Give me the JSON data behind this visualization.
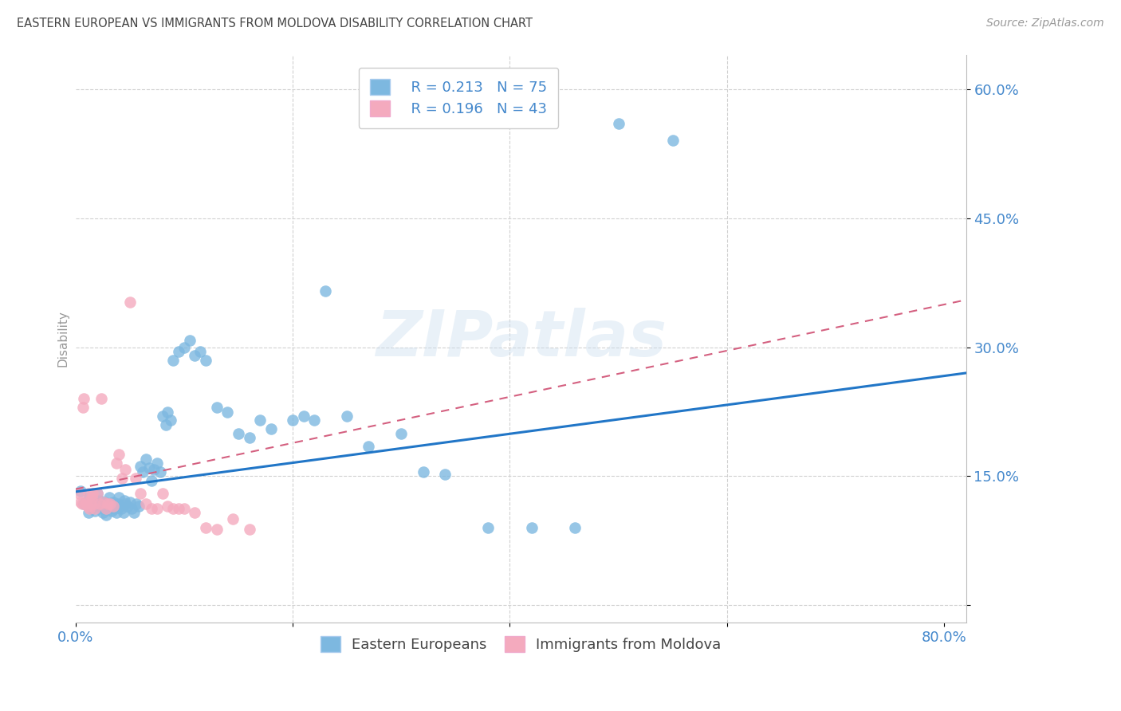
{
  "title": "EASTERN EUROPEAN VS IMMIGRANTS FROM MOLDOVA DISABILITY CORRELATION CHART",
  "source": "Source: ZipAtlas.com",
  "ylabel": "Disability",
  "xlim": [
    0.0,
    0.82
  ],
  "ylim": [
    -0.02,
    0.64
  ],
  "y_ticks": [
    0.0,
    0.15,
    0.3,
    0.45,
    0.6
  ],
  "y_tick_labels": [
    "",
    "15.0%",
    "30.0%",
    "45.0%",
    "60.0%"
  ],
  "x_ticks": [
    0.0,
    0.2,
    0.4,
    0.6,
    0.8
  ],
  "x_tick_labels": [
    "0.0%",
    "",
    "",
    "",
    "80.0%"
  ],
  "legend_r1": "R = 0.213",
  "legend_n1": "N = 75",
  "legend_r2": "R = 0.196",
  "legend_n2": "N = 43",
  "blue_color": "#7db8e0",
  "blue_line_color": "#2176c7",
  "pink_color": "#f4aabe",
  "pink_line_color": "#d46080",
  "watermark": "ZIPatlas",
  "grid_color": "#d0d0d0",
  "title_color": "#444444",
  "axis_label_color": "#4488cc",
  "blue_scatter_x": [
    0.005,
    0.008,
    0.01,
    0.012,
    0.013,
    0.015,
    0.017,
    0.018,
    0.02,
    0.021,
    0.022,
    0.023,
    0.025,
    0.026,
    0.027,
    0.028,
    0.03,
    0.031,
    0.032,
    0.033,
    0.035,
    0.036,
    0.038,
    0.039,
    0.04,
    0.041,
    0.042,
    0.044,
    0.045,
    0.046,
    0.048,
    0.05,
    0.052,
    0.054,
    0.056,
    0.058,
    0.06,
    0.062,
    0.065,
    0.068,
    0.07,
    0.072,
    0.075,
    0.078,
    0.08,
    0.083,
    0.085,
    0.088,
    0.09,
    0.095,
    0.1,
    0.105,
    0.11,
    0.115,
    0.12,
    0.13,
    0.14,
    0.15,
    0.16,
    0.17,
    0.18,
    0.2,
    0.21,
    0.22,
    0.23,
    0.25,
    0.27,
    0.3,
    0.32,
    0.34,
    0.38,
    0.42,
    0.46,
    0.5,
    0.55
  ],
  "blue_scatter_y": [
    0.133,
    0.118,
    0.12,
    0.108,
    0.125,
    0.112,
    0.115,
    0.11,
    0.13,
    0.118,
    0.122,
    0.115,
    0.108,
    0.112,
    0.12,
    0.105,
    0.115,
    0.125,
    0.118,
    0.11,
    0.12,
    0.112,
    0.108,
    0.118,
    0.125,
    0.115,
    0.112,
    0.108,
    0.122,
    0.118,
    0.115,
    0.12,
    0.112,
    0.108,
    0.118,
    0.115,
    0.162,
    0.155,
    0.17,
    0.16,
    0.145,
    0.158,
    0.165,
    0.155,
    0.22,
    0.21,
    0.225,
    0.215,
    0.285,
    0.295,
    0.3,
    0.308,
    0.29,
    0.295,
    0.285,
    0.23,
    0.225,
    0.2,
    0.195,
    0.215,
    0.205,
    0.215,
    0.22,
    0.215,
    0.365,
    0.22,
    0.185,
    0.2,
    0.155,
    0.152,
    0.09,
    0.09,
    0.09,
    0.56,
    0.54
  ],
  "pink_scatter_x": [
    0.003,
    0.005,
    0.006,
    0.007,
    0.008,
    0.009,
    0.01,
    0.011,
    0.012,
    0.013,
    0.014,
    0.015,
    0.016,
    0.017,
    0.018,
    0.02,
    0.022,
    0.024,
    0.026,
    0.028,
    0.03,
    0.032,
    0.035,
    0.038,
    0.04,
    0.043,
    0.046,
    0.05,
    0.055,
    0.06,
    0.065,
    0.07,
    0.075,
    0.08,
    0.085,
    0.09,
    0.095,
    0.1,
    0.11,
    0.12,
    0.13,
    0.145,
    0.16
  ],
  "pink_scatter_y": [
    0.13,
    0.12,
    0.118,
    0.23,
    0.24,
    0.118,
    0.12,
    0.115,
    0.13,
    0.112,
    0.118,
    0.125,
    0.13,
    0.118,
    0.112,
    0.13,
    0.118,
    0.24,
    0.12,
    0.112,
    0.118,
    0.118,
    0.115,
    0.165,
    0.175,
    0.148,
    0.158,
    0.352,
    0.148,
    0.13,
    0.118,
    0.112,
    0.112,
    0.13,
    0.115,
    0.112,
    0.112,
    0.112,
    0.108,
    0.09,
    0.088,
    0.1,
    0.088
  ],
  "blue_line_x0": 0.0,
  "blue_line_x1": 0.82,
  "blue_line_y0": 0.132,
  "blue_line_y1": 0.27,
  "pink_line_x0": 0.0,
  "pink_line_x1": 0.82,
  "pink_line_y0": 0.135,
  "pink_line_y1": 0.355
}
